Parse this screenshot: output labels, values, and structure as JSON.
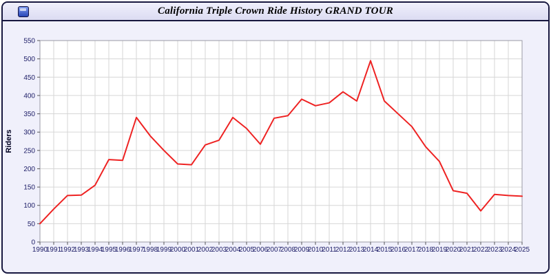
{
  "window": {
    "title": "California Triple Crown Ride History GRAND TOUR"
  },
  "chart_data": {
    "type": "line",
    "title": "California Triple Crown Ride History GRAND TOUR",
    "xlabel": "",
    "ylabel": "Riders",
    "ylim": [
      0,
      550
    ],
    "ytick_step": 50,
    "grid": true,
    "legend": "none",
    "x": [
      1990,
      1991,
      1992,
      1993,
      1994,
      1995,
      1996,
      1997,
      1998,
      1999,
      2000,
      2001,
      2002,
      2003,
      2004,
      2005,
      2006,
      2007,
      2008,
      2009,
      2010,
      2011,
      2012,
      2013,
      2014,
      2015,
      2016,
      2017,
      2018,
      2019,
      2020,
      2021,
      2022,
      2023,
      2024,
      2025
    ],
    "series": [
      {
        "name": "Riders",
        "values": [
          50,
          90,
          127,
          128,
          155,
          225,
          223,
          340,
          290,
          250,
          213,
          211,
          265,
          278,
          340,
          310,
          267,
          338,
          345,
          390,
          372,
          380,
          410,
          385,
          495,
          385,
          350,
          315,
          260,
          220,
          140,
          133,
          85,
          130,
          127,
          125
        ]
      }
    ]
  },
  "colors": {
    "line": "#ee2222",
    "axis_text": "#1c1c66",
    "ylabel_text": "#000020",
    "tick": "#555555",
    "grid": "#d6d6d6",
    "plot_border": "#9a9aa6",
    "plot_bg": "#ffffff",
    "window_bg": "#f0f0fb",
    "titlebar_bg": "#e4e4f6",
    "border": "#16163e",
    "icon_blue": "#2846b6"
  }
}
